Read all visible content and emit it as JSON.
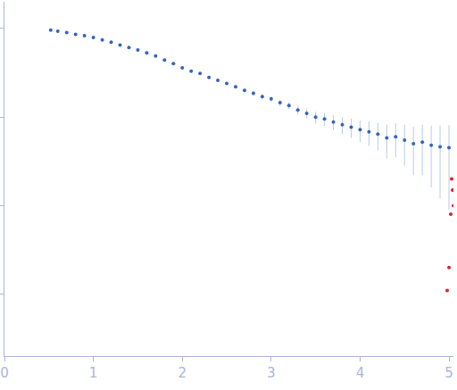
{
  "chart_data": {
    "type": "scatter",
    "log": "y",
    "grid": false,
    "tick_labels": "x",
    "xlim": [
      0,
      5.05
    ],
    "xticks": [
      0,
      1,
      2,
      3,
      4,
      5
    ],
    "ylim": [
      0.0002,
      2
    ],
    "yticks": [
      0.001,
      0.01,
      0.1,
      1
    ],
    "series": [
      {
        "color": "#3563c0",
        "marker": "circle",
        "x": [
          0.52,
          0.6,
          0.7,
          0.8,
          0.9,
          1.0,
          1.1,
          1.2,
          1.3,
          1.4,
          1.5,
          1.6,
          1.7,
          1.8,
          1.9,
          2.0,
          2.1,
          2.2,
          2.3,
          2.4,
          2.5,
          2.6,
          2.7,
          2.8,
          2.9,
          3.0,
          3.1,
          3.2,
          3.3,
          3.4,
          3.5,
          3.6,
          3.7,
          3.8,
          3.9,
          4.0,
          4.1,
          4.2,
          4.3,
          4.4,
          4.5,
          4.6,
          4.7,
          4.8,
          4.9,
          5.0
        ],
        "values": [
          0.96,
          0.93,
          0.9,
          0.86,
          0.83,
          0.79,
          0.74,
          0.7,
          0.65,
          0.61,
          0.57,
          0.53,
          0.49,
          0.44,
          0.4,
          0.36,
          0.33,
          0.31,
          0.28,
          0.26,
          0.24,
          0.22,
          0.2,
          0.185,
          0.17,
          0.16,
          0.145,
          0.135,
          0.12,
          0.11,
          0.1,
          0.095,
          0.088,
          0.082,
          0.077,
          0.072,
          0.068,
          0.064,
          0.058,
          0.06,
          0.055,
          0.05,
          0.052,
          0.048,
          0.046,
          0.045
        ],
        "errors": [
          0.01,
          0.01,
          0.01,
          0.01,
          0.01,
          0.01,
          0.01,
          0.01,
          0.01,
          0.01,
          0.01,
          0.01,
          0.01,
          0.01,
          0.01,
          0.01,
          0.01,
          0.01,
          0.01,
          0.01,
          0.01,
          0.01,
          0.01,
          0.012,
          0.012,
          0.012,
          0.012,
          0.013,
          0.013,
          0.014,
          0.015,
          0.016,
          0.017,
          0.018,
          0.019,
          0.02,
          0.021,
          0.022,
          0.024,
          0.025,
          0.027,
          0.028,
          0.03,
          0.032,
          0.034,
          0.036
        ]
      },
      {
        "color": "#d9232e",
        "marker": "circle",
        "x": [
          4.98,
          5.0,
          5.02,
          5.03,
          5.04,
          5.05
        ],
        "values": [
          0.0011,
          0.002,
          0.008,
          0.02,
          0.015,
          0.01
        ]
      }
    ]
  }
}
